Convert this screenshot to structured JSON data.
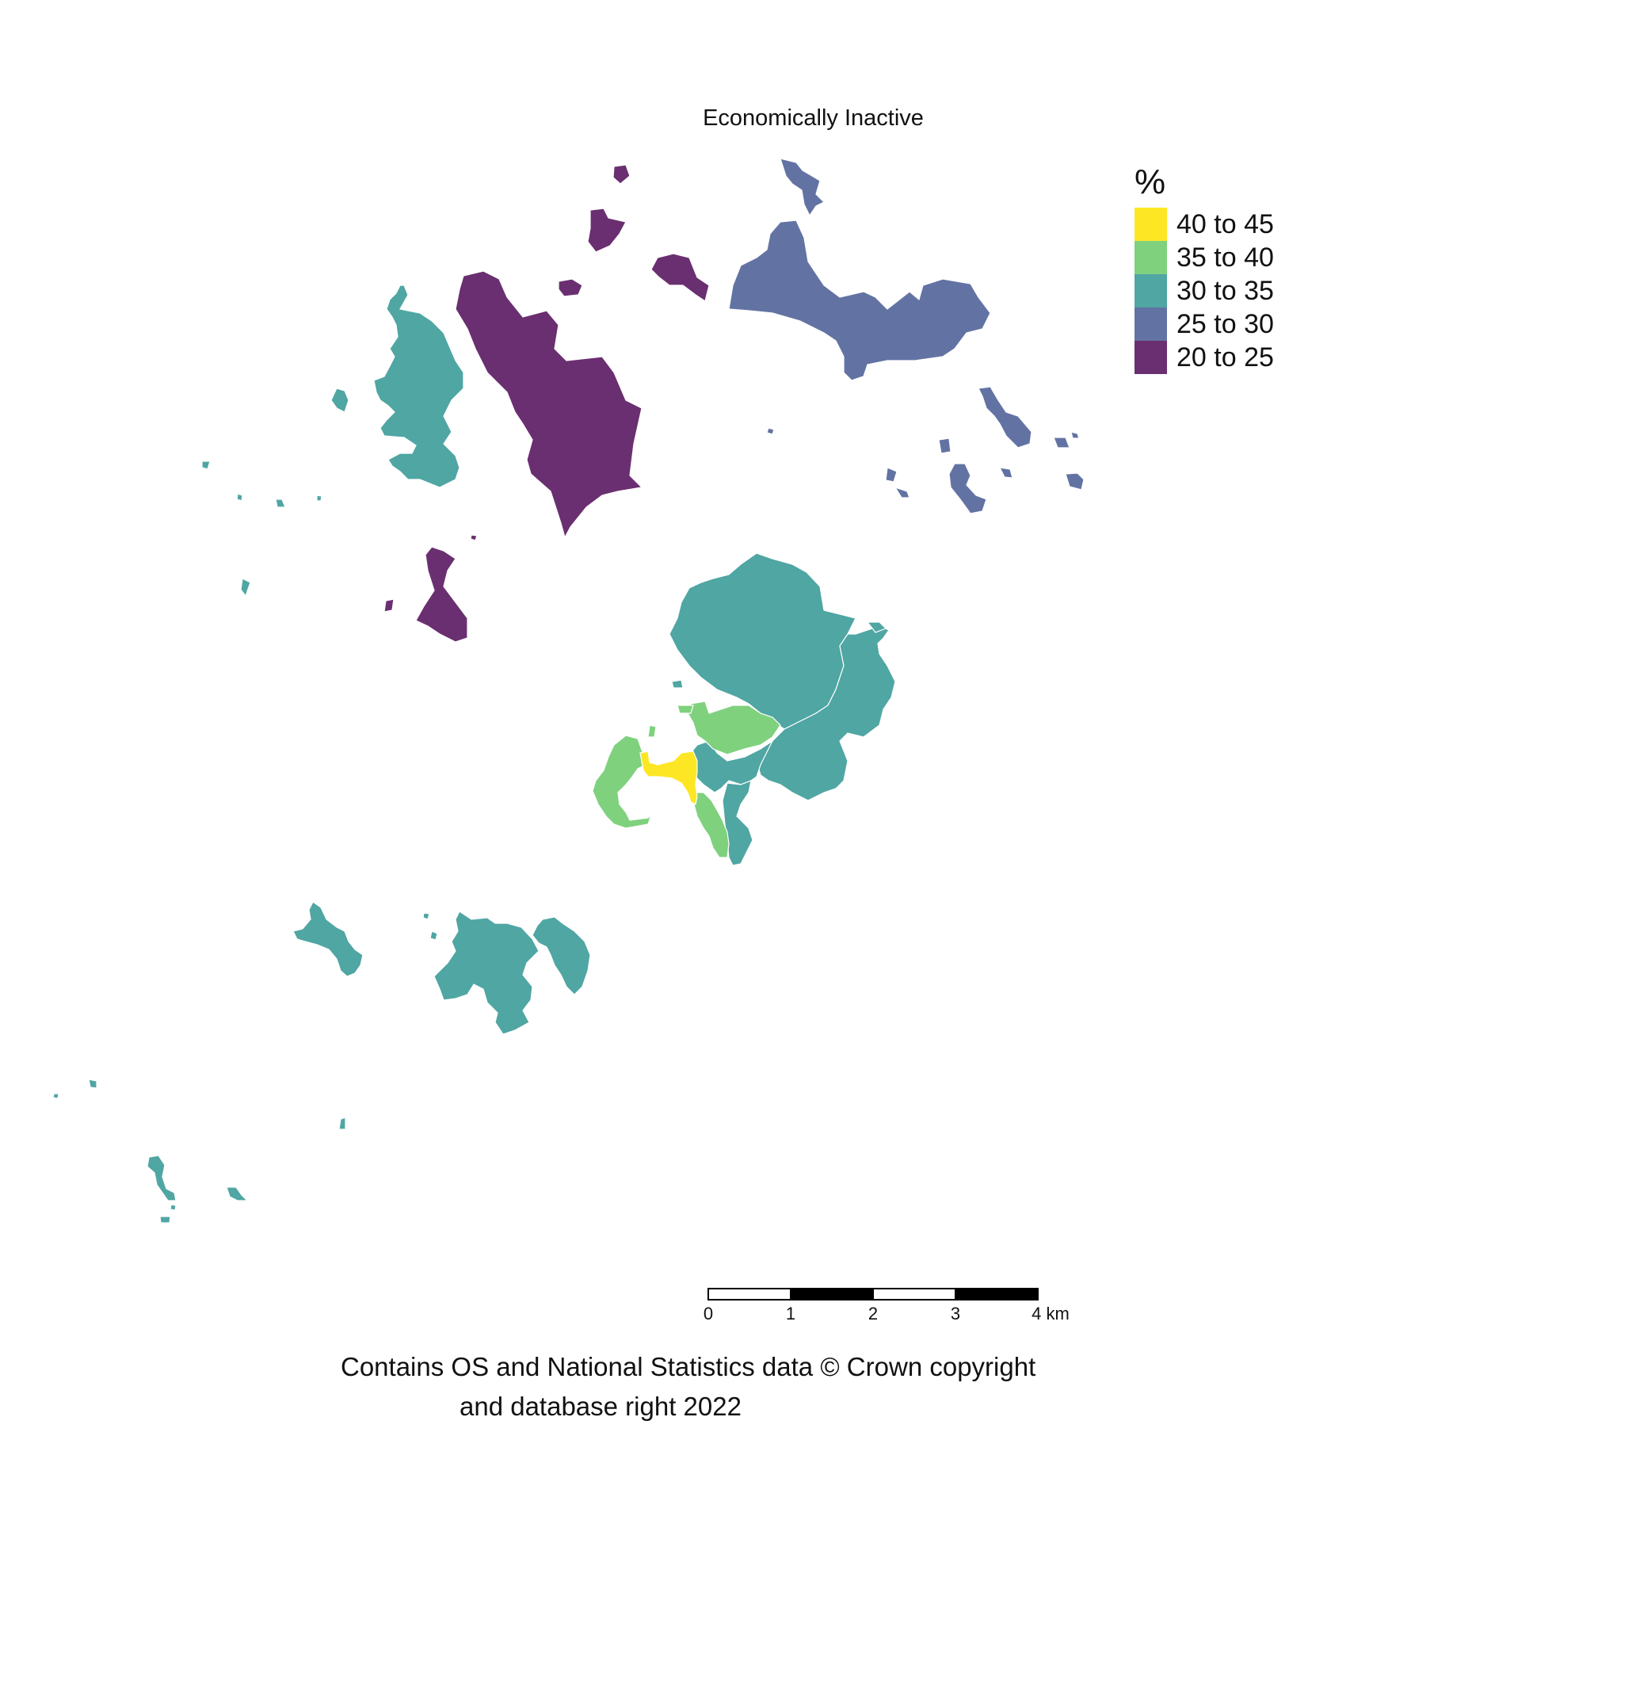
{
  "map": {
    "title": "Economically Inactive",
    "legend": {
      "title": "%",
      "items": [
        {
          "label": "40 to 45",
          "color": "#fde725"
        },
        {
          "label": "35 to 40",
          "color": "#7ad151"
        },
        {
          "label": "30 to 35",
          "color": "#22a884"
        },
        {
          "label": "25 to 30",
          "color": "#414487"
        },
        {
          "label": "20 to 25",
          "color": "#440154"
        }
      ]
    },
    "fill_colors": {
      "class_40_45": "#fde725",
      "class_35_40": "#7fd17e",
      "class_30_35": "#4fa6a3",
      "class_25_30": "#6273a3",
      "class_20_25": "#6a2f70"
    },
    "scale_bar": {
      "ticks": [
        "0",
        "1",
        "2",
        "3",
        "4 km"
      ]
    },
    "credit": {
      "line1": "Contains OS and National Statistics data © Crown copyright",
      "line2": "and database right 2022"
    }
  }
}
